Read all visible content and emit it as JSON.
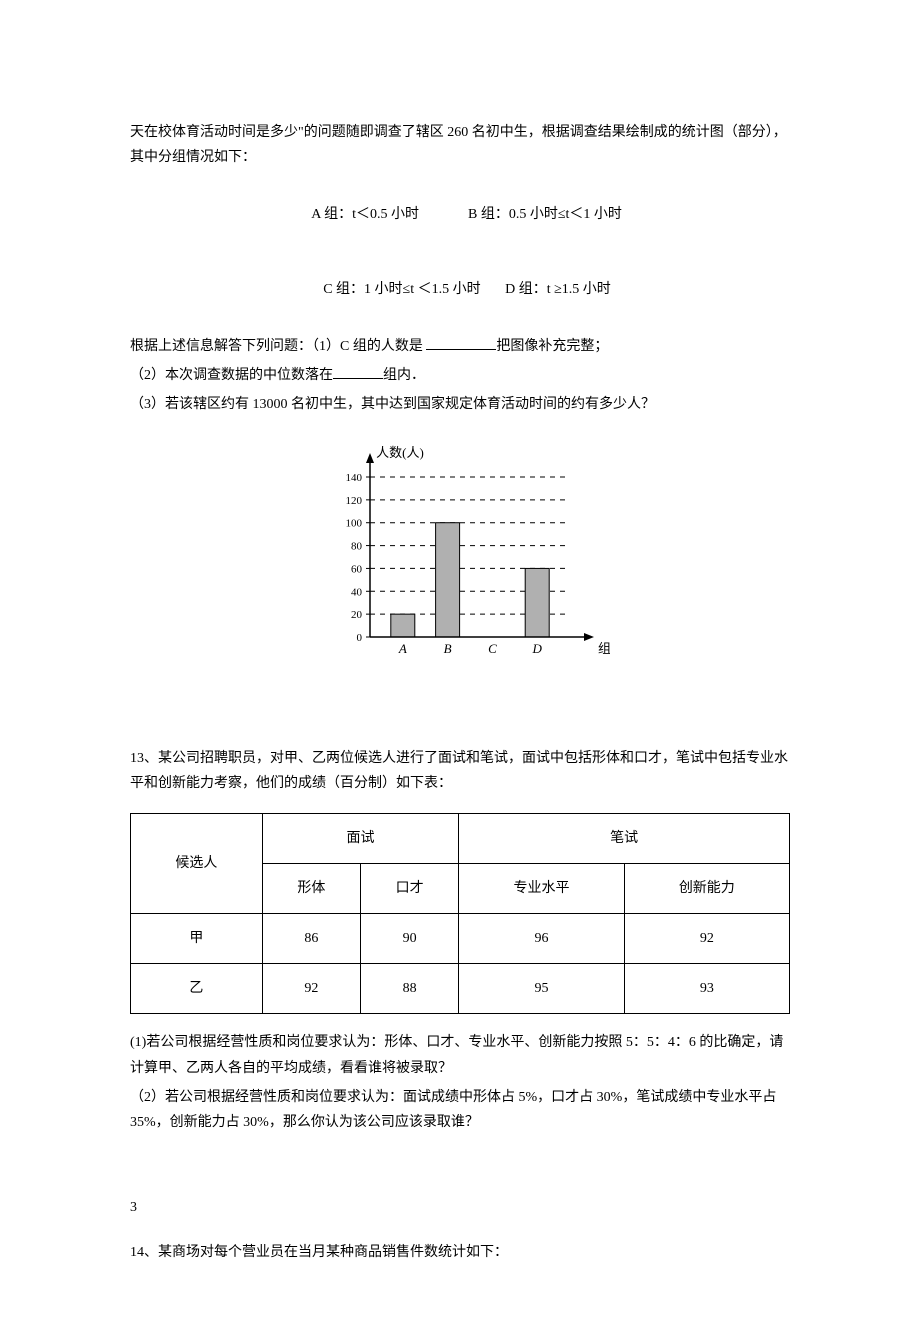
{
  "q12": {
    "intro1": "天在校体育活动时间是多少\"的问题随即调查了辖区 260 名初中生，根据调查结果绘制成的统计图（部分），其中分组情况如下：",
    "groupA": "A 组：t＜0.5 小时",
    "groupB": "B 组：0.5 小时≤t＜1 小时",
    "groupC": "C 组：1 小时≤t ＜1.5 小时",
    "groupD": "D 组：t ≥1.5 小时",
    "sub1a": "根据上述信息解答下列问题：（1）C 组的人数是 ",
    "sub1b": "把图像补充完整；",
    "sub2a": "（2）本次调查数据的中位数落在",
    "sub2b": "组内．",
    "sub3": "（3）若该辖区约有 13000 名初中生，其中达到国家规定体育活动时间的约有多少人？",
    "chart": {
      "y_label": "人数(人)",
      "x_label": "组别",
      "y_ticks": [
        0,
        20,
        40,
        60,
        80,
        100,
        120,
        140
      ],
      "categories": [
        "A",
        "B",
        "C",
        "D"
      ],
      "values": [
        20,
        100,
        null,
        60
      ],
      "bar_color": "#b0b0b0",
      "axis_color": "#000000",
      "grid_color": "#000000"
    }
  },
  "q13": {
    "intro": "13、某公司招聘职员，对甲、乙两位候选人进行了面试和笔试，面试中包括形体和口才，笔试中包括专业水平和创新能力考察，他们的成绩（百分制）如下表：",
    "table": {
      "h_candidate": "候选人",
      "h_interview": "面试",
      "h_written": "笔试",
      "h_form": "形体",
      "h_speech": "口才",
      "h_pro": "专业水平",
      "h_innov": "创新能力",
      "rows": [
        {
          "name": "甲",
          "form": "86",
          "speech": "90",
          "pro": "96",
          "innov": "92"
        },
        {
          "name": "乙",
          "form": "92",
          "speech": "88",
          "pro": "95",
          "innov": "93"
        }
      ]
    },
    "sub1": " (1)若公司根据经营性质和岗位要求认为：形体、口才、专业水平、创新能力按照 5：5：4：6 的比确定，请计算甲、乙两人各自的平均成绩，看看谁将被录取？",
    "sub2": "（2）若公司根据经营性质和岗位要求认为：面试成绩中形体占 5%，口才占 30%，笔试成绩中专业水平占 35%，创新能力占 30%，那么你认为该公司应该录取谁？"
  },
  "page_num": "3",
  "q14": {
    "text": "14、某商场对每个营业员在当月某种商品销售件数统计如下："
  }
}
